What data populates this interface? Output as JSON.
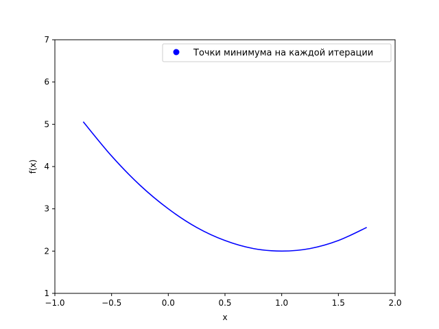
{
  "chart_data": {
    "type": "line",
    "title": "",
    "xlabel": "x",
    "ylabel": "f(x)",
    "xlim": [
      -1.0,
      2.0
    ],
    "ylim": [
      1,
      7
    ],
    "xticks": [
      "−1.0",
      "−0.5",
      "0.0",
      "0.5",
      "1.0",
      "1.5",
      "2.0"
    ],
    "xtick_values": [
      -1.0,
      -0.5,
      0.0,
      0.5,
      1.0,
      1.5,
      2.0
    ],
    "yticks": [
      "1",
      "2",
      "3",
      "4",
      "5",
      "6",
      "7"
    ],
    "ytick_values": [
      1,
      2,
      3,
      4,
      5,
      6,
      7
    ],
    "grid": false,
    "legend": {
      "placement": "top-right",
      "entries": [
        {
          "label": "Точки минимума на каждой итерации",
          "marker": "circle",
          "color": "#0000ff"
        }
      ]
    },
    "series": [
      {
        "kind": "line",
        "color": "#0000ff",
        "x": [
          -0.75,
          -0.5,
          -0.25,
          0.0,
          0.25,
          0.5,
          0.75,
          1.0,
          1.25,
          1.5,
          1.75
        ],
        "y": [
          5.06,
          4.25,
          3.56,
          3.0,
          2.56,
          2.25,
          2.06,
          2.0,
          2.06,
          2.25,
          2.56
        ]
      }
    ]
  }
}
